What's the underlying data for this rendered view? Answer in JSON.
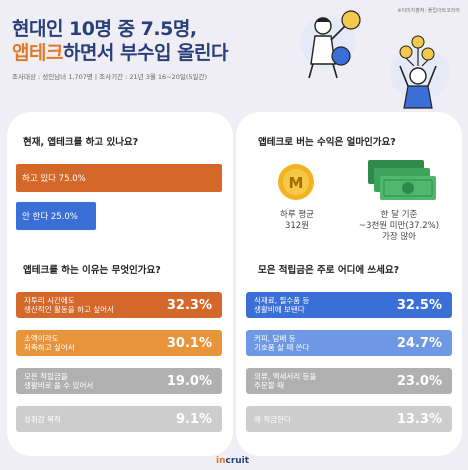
{
  "source": "※이미지출처: 플립아트코리아",
  "title": {
    "line1": "현대인 10명 중 7.5명,",
    "line2_highlight": "앱테크",
    "line2_rest": "하면서 부수입 올린다"
  },
  "survey": "조사대상 : 성인남녀 1,707명  |  조사기간 : 21년 3월 16~20일(5일간)",
  "left": {
    "q1": {
      "question": "현재, 앱테크를 하고 있나요?",
      "bars": [
        {
          "label": "하고 있다 75.0%",
          "value": 75.0
        },
        {
          "label": "안 한다 25.0%",
          "value": 25.0
        }
      ]
    },
    "q2": {
      "question": "앱테크를 하는 이유는 무엇인가요?",
      "rows": [
        {
          "label": "자투리 시간에도\n생산적인 활동을 하고 싶어서",
          "pct": "32.3%"
        },
        {
          "label": "소액이라도\n저축하고 싶어서",
          "pct": "30.1%"
        },
        {
          "label": "모은 적립금을\n생활비로 쓸 수 있어서",
          "pct": "19.0%"
        },
        {
          "label": "성취감 목적",
          "pct": "9.1%"
        }
      ]
    }
  },
  "right": {
    "q1": {
      "question": "앱테크로 버는 수익은 얼마인가요?",
      "coin_symbol": "M",
      "daily_label": "하루 평균",
      "daily_value": "312원",
      "monthly_label": "한 달 기준",
      "monthly_value": "~3천원 미만(37.2%)",
      "monthly_note": "가장 많아"
    },
    "q2": {
      "question": "모은 적립금은 주로 어디에 쓰세요?",
      "rows": [
        {
          "label": "식재료, 필수품 등\n생활비에 보탠다",
          "pct": "32.5%"
        },
        {
          "label": "커피, 담배 등\n기호품 살 때 쓴다",
          "pct": "24.7%"
        },
        {
          "label": "의류, 액세서리 등을\n주문할 때",
          "pct": "23.0%"
        },
        {
          "label": "예·적금한다",
          "pct": "13.3%"
        }
      ]
    }
  },
  "logo": {
    "prefix": "in",
    "rest": "cruit"
  }
}
